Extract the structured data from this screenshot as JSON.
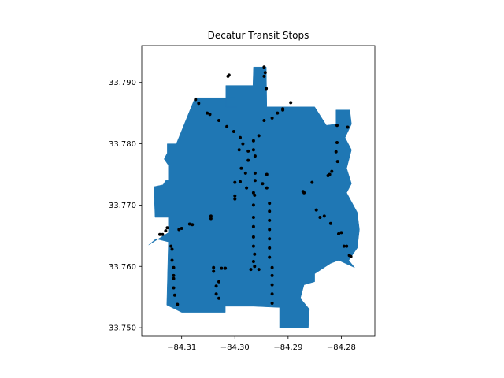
{
  "chart_data": {
    "type": "map",
    "title": "Decatur Transit Stops",
    "xlabel": "",
    "ylabel": "",
    "xlim": [
      -84.3175,
      -84.2737
    ],
    "ylim": [
      33.7486,
      33.796
    ],
    "x_ticks": [
      -84.31,
      -84.3,
      -84.29,
      -84.28
    ],
    "x_tick_labels": [
      "−84.31",
      "−84.30",
      "−84.29",
      "−84.28"
    ],
    "y_ticks": [
      33.75,
      33.76,
      33.77,
      33.78,
      33.79
    ],
    "y_tick_labels": [
      "33.750",
      "33.760",
      "33.770",
      "33.780",
      "33.790"
    ],
    "grid": false,
    "colors": {
      "polygon": "#1f77b4",
      "points": "#000000"
    },
    "boundary": [
      [
        -84.3017,
        33.7895
      ],
      [
        -84.2966,
        33.7895
      ],
      [
        -84.2965,
        33.7925
      ],
      [
        -84.2941,
        33.7925
      ],
      [
        -84.294,
        33.786
      ],
      [
        -84.285,
        33.786
      ],
      [
        -84.2828,
        33.783
      ],
      [
        -84.281,
        33.7832
      ],
      [
        -84.281,
        33.7855
      ],
      [
        -84.2784,
        33.7855
      ],
      [
        -84.2781,
        33.7832
      ],
      [
        -84.2793,
        33.781
      ],
      [
        -84.2781,
        33.779
      ],
      [
        -84.279,
        33.776
      ],
      [
        -84.2781,
        33.7735
      ],
      [
        -84.279,
        33.772
      ],
      [
        -84.277,
        33.7688
      ],
      [
        -84.2766,
        33.766
      ],
      [
        -84.277,
        33.763
      ],
      [
        -84.2786,
        33.761
      ],
      [
        -84.2775,
        33.7598
      ],
      [
        -84.2805,
        33.761
      ],
      [
        -84.282,
        33.7605
      ],
      [
        -84.285,
        33.7588
      ],
      [
        -84.285,
        33.7575
      ],
      [
        -84.287,
        33.757
      ],
      [
        -84.2877,
        33.7548
      ],
      [
        -84.286,
        33.753
      ],
      [
        -84.2862,
        33.75
      ],
      [
        -84.2916,
        33.75
      ],
      [
        -84.2916,
        33.7533
      ],
      [
        -84.2965,
        33.7535
      ],
      [
        -84.3018,
        33.7535
      ],
      [
        -84.3018,
        33.7525
      ],
      [
        -84.31,
        33.7525
      ],
      [
        -84.3128,
        33.7537
      ],
      [
        -84.3125,
        33.764
      ],
      [
        -84.3148,
        33.7645
      ],
      [
        -84.3162,
        33.7635
      ],
      [
        -84.3125,
        33.7655
      ],
      [
        -84.3125,
        33.768
      ],
      [
        -84.315,
        33.768
      ],
      [
        -84.3152,
        33.773
      ],
      [
        -84.3135,
        33.7733
      ],
      [
        -84.313,
        33.774
      ],
      [
        -84.3125,
        33.774
      ],
      [
        -84.3125,
        33.7765
      ],
      [
        -84.3133,
        33.7775
      ],
      [
        -84.3127,
        33.7785
      ],
      [
        -84.3127,
        33.78
      ],
      [
        -84.311,
        33.78
      ],
      [
        -84.3075,
        33.7875
      ],
      [
        -84.3,
        33.7875
      ],
      [
        -84.2995,
        33.786
      ],
      [
        -84.3017,
        33.786
      ]
    ],
    "points": [
      [
        -84.2945,
        33.7925
      ],
      [
        -84.2943,
        33.7916
      ],
      [
        -84.2945,
        33.791
      ],
      [
        -84.3011,
        33.7912
      ],
      [
        -84.3013,
        33.791
      ],
      [
        -84.2941,
        33.789
      ],
      [
        -84.3074,
        33.7872
      ],
      [
        -84.3068,
        33.7866
      ],
      [
        -84.2895,
        33.7867
      ],
      [
        -84.291,
        33.7857
      ],
      [
        -84.291,
        33.7855
      ],
      [
        -84.292,
        33.785
      ],
      [
        -84.293,
        33.7842
      ],
      [
        -84.2945,
        33.7838
      ],
      [
        -84.3052,
        33.785
      ],
      [
        -84.3047,
        33.7848
      ],
      [
        -84.303,
        33.7838
      ],
      [
        -84.3015,
        33.7828
      ],
      [
        -84.3002,
        33.782
      ],
      [
        -84.299,
        33.781
      ],
      [
        -84.2985,
        33.78
      ],
      [
        -84.2975,
        33.7788
      ],
      [
        -84.2965,
        33.7805
      ],
      [
        -84.2955,
        33.7813
      ],
      [
        -84.2965,
        33.779
      ],
      [
        -84.2962,
        33.778
      ],
      [
        -84.2992,
        33.779
      ],
      [
        -84.2975,
        33.7773
      ],
      [
        -84.2988,
        33.776
      ],
      [
        -84.298,
        33.7752
      ],
      [
        -84.299,
        33.7738
      ],
      [
        -84.3,
        33.7737
      ],
      [
        -84.2978,
        33.7728
      ],
      [
        -84.2965,
        33.772
      ],
      [
        -84.2948,
        33.7735
      ],
      [
        -84.294,
        33.775
      ],
      [
        -84.2962,
        33.7752
      ],
      [
        -84.2962,
        33.774
      ],
      [
        -84.294,
        33.7728
      ],
      [
        -84.2963,
        33.7716
      ],
      [
        -84.2965,
        33.77
      ],
      [
        -84.2965,
        33.768
      ],
      [
        -84.2965,
        33.7665
      ],
      [
        -84.2965,
        33.7648
      ],
      [
        -84.2965,
        33.7633
      ],
      [
        -84.2963,
        33.762
      ],
      [
        -84.2965,
        33.7608
      ],
      [
        -84.2963,
        33.76
      ],
      [
        -84.297,
        33.7595
      ],
      [
        -84.2935,
        33.7703
      ],
      [
        -84.2935,
        33.769
      ],
      [
        -84.2935,
        33.7675
      ],
      [
        -84.2935,
        33.766
      ],
      [
        -84.2935,
        33.7645
      ],
      [
        -84.2935,
        33.763
      ],
      [
        -84.2935,
        33.7615
      ],
      [
        -84.293,
        33.7598
      ],
      [
        -84.293,
        33.7585
      ],
      [
        -84.293,
        33.757
      ],
      [
        -84.293,
        33.7555
      ],
      [
        -84.293,
        33.754
      ],
      [
        -84.2955,
        33.7595
      ],
      [
        -84.287,
        33.772
      ],
      [
        -84.2872,
        33.7722
      ],
      [
        -84.2855,
        33.7737
      ],
      [
        -84.2847,
        33.7692
      ],
      [
        -84.284,
        33.768
      ],
      [
        -84.2832,
        33.7682
      ],
      [
        -84.282,
        33.767
      ],
      [
        -84.2805,
        33.7653
      ],
      [
        -84.28,
        33.7655
      ],
      [
        -84.2795,
        33.7633
      ],
      [
        -84.279,
        33.7633
      ],
      [
        -84.2785,
        33.7618
      ],
      [
        -84.2782,
        33.7616
      ],
      [
        -84.2822,
        33.775
      ],
      [
        -84.2825,
        33.7748
      ],
      [
        -84.2818,
        33.7755
      ],
      [
        -84.2807,
        33.7771
      ],
      [
        -84.281,
        33.7787
      ],
      [
        -84.2808,
        33.7802
      ],
      [
        -84.2808,
        33.783
      ],
      [
        -84.2788,
        33.7827
      ],
      [
        -84.3141,
        33.7652
      ],
      [
        -84.3136,
        33.7652
      ],
      [
        -84.313,
        33.7658
      ],
      [
        -84.3127,
        33.7663
      ],
      [
        -84.3105,
        33.766
      ],
      [
        -84.31,
        33.7662
      ],
      [
        -84.3085,
        33.7669
      ],
      [
        -84.308,
        33.7668
      ],
      [
        -84.3045,
        33.7678
      ],
      [
        -84.3045,
        33.7682
      ],
      [
        -84.312,
        33.7633
      ],
      [
        -84.3118,
        33.7628
      ],
      [
        -84.3118,
        33.761
      ],
      [
        -84.3115,
        33.7598
      ],
      [
        -84.3115,
        33.7585
      ],
      [
        -84.3115,
        33.758
      ],
      [
        -84.3115,
        33.7565
      ],
      [
        -84.3113,
        33.7553
      ],
      [
        -84.3108,
        33.7538
      ],
      [
        -84.304,
        33.7598
      ],
      [
        -84.304,
        33.7592
      ],
      [
        -84.303,
        33.7575
      ],
      [
        -84.3035,
        33.7568
      ],
      [
        -84.3035,
        33.7555
      ],
      [
        -84.303,
        33.7548
      ],
      [
        -84.3025,
        33.7597
      ],
      [
        -84.3018,
        33.7597
      ],
      [
        -84.3,
        33.7715
      ],
      [
        -84.3,
        33.771
      ]
    ]
  }
}
